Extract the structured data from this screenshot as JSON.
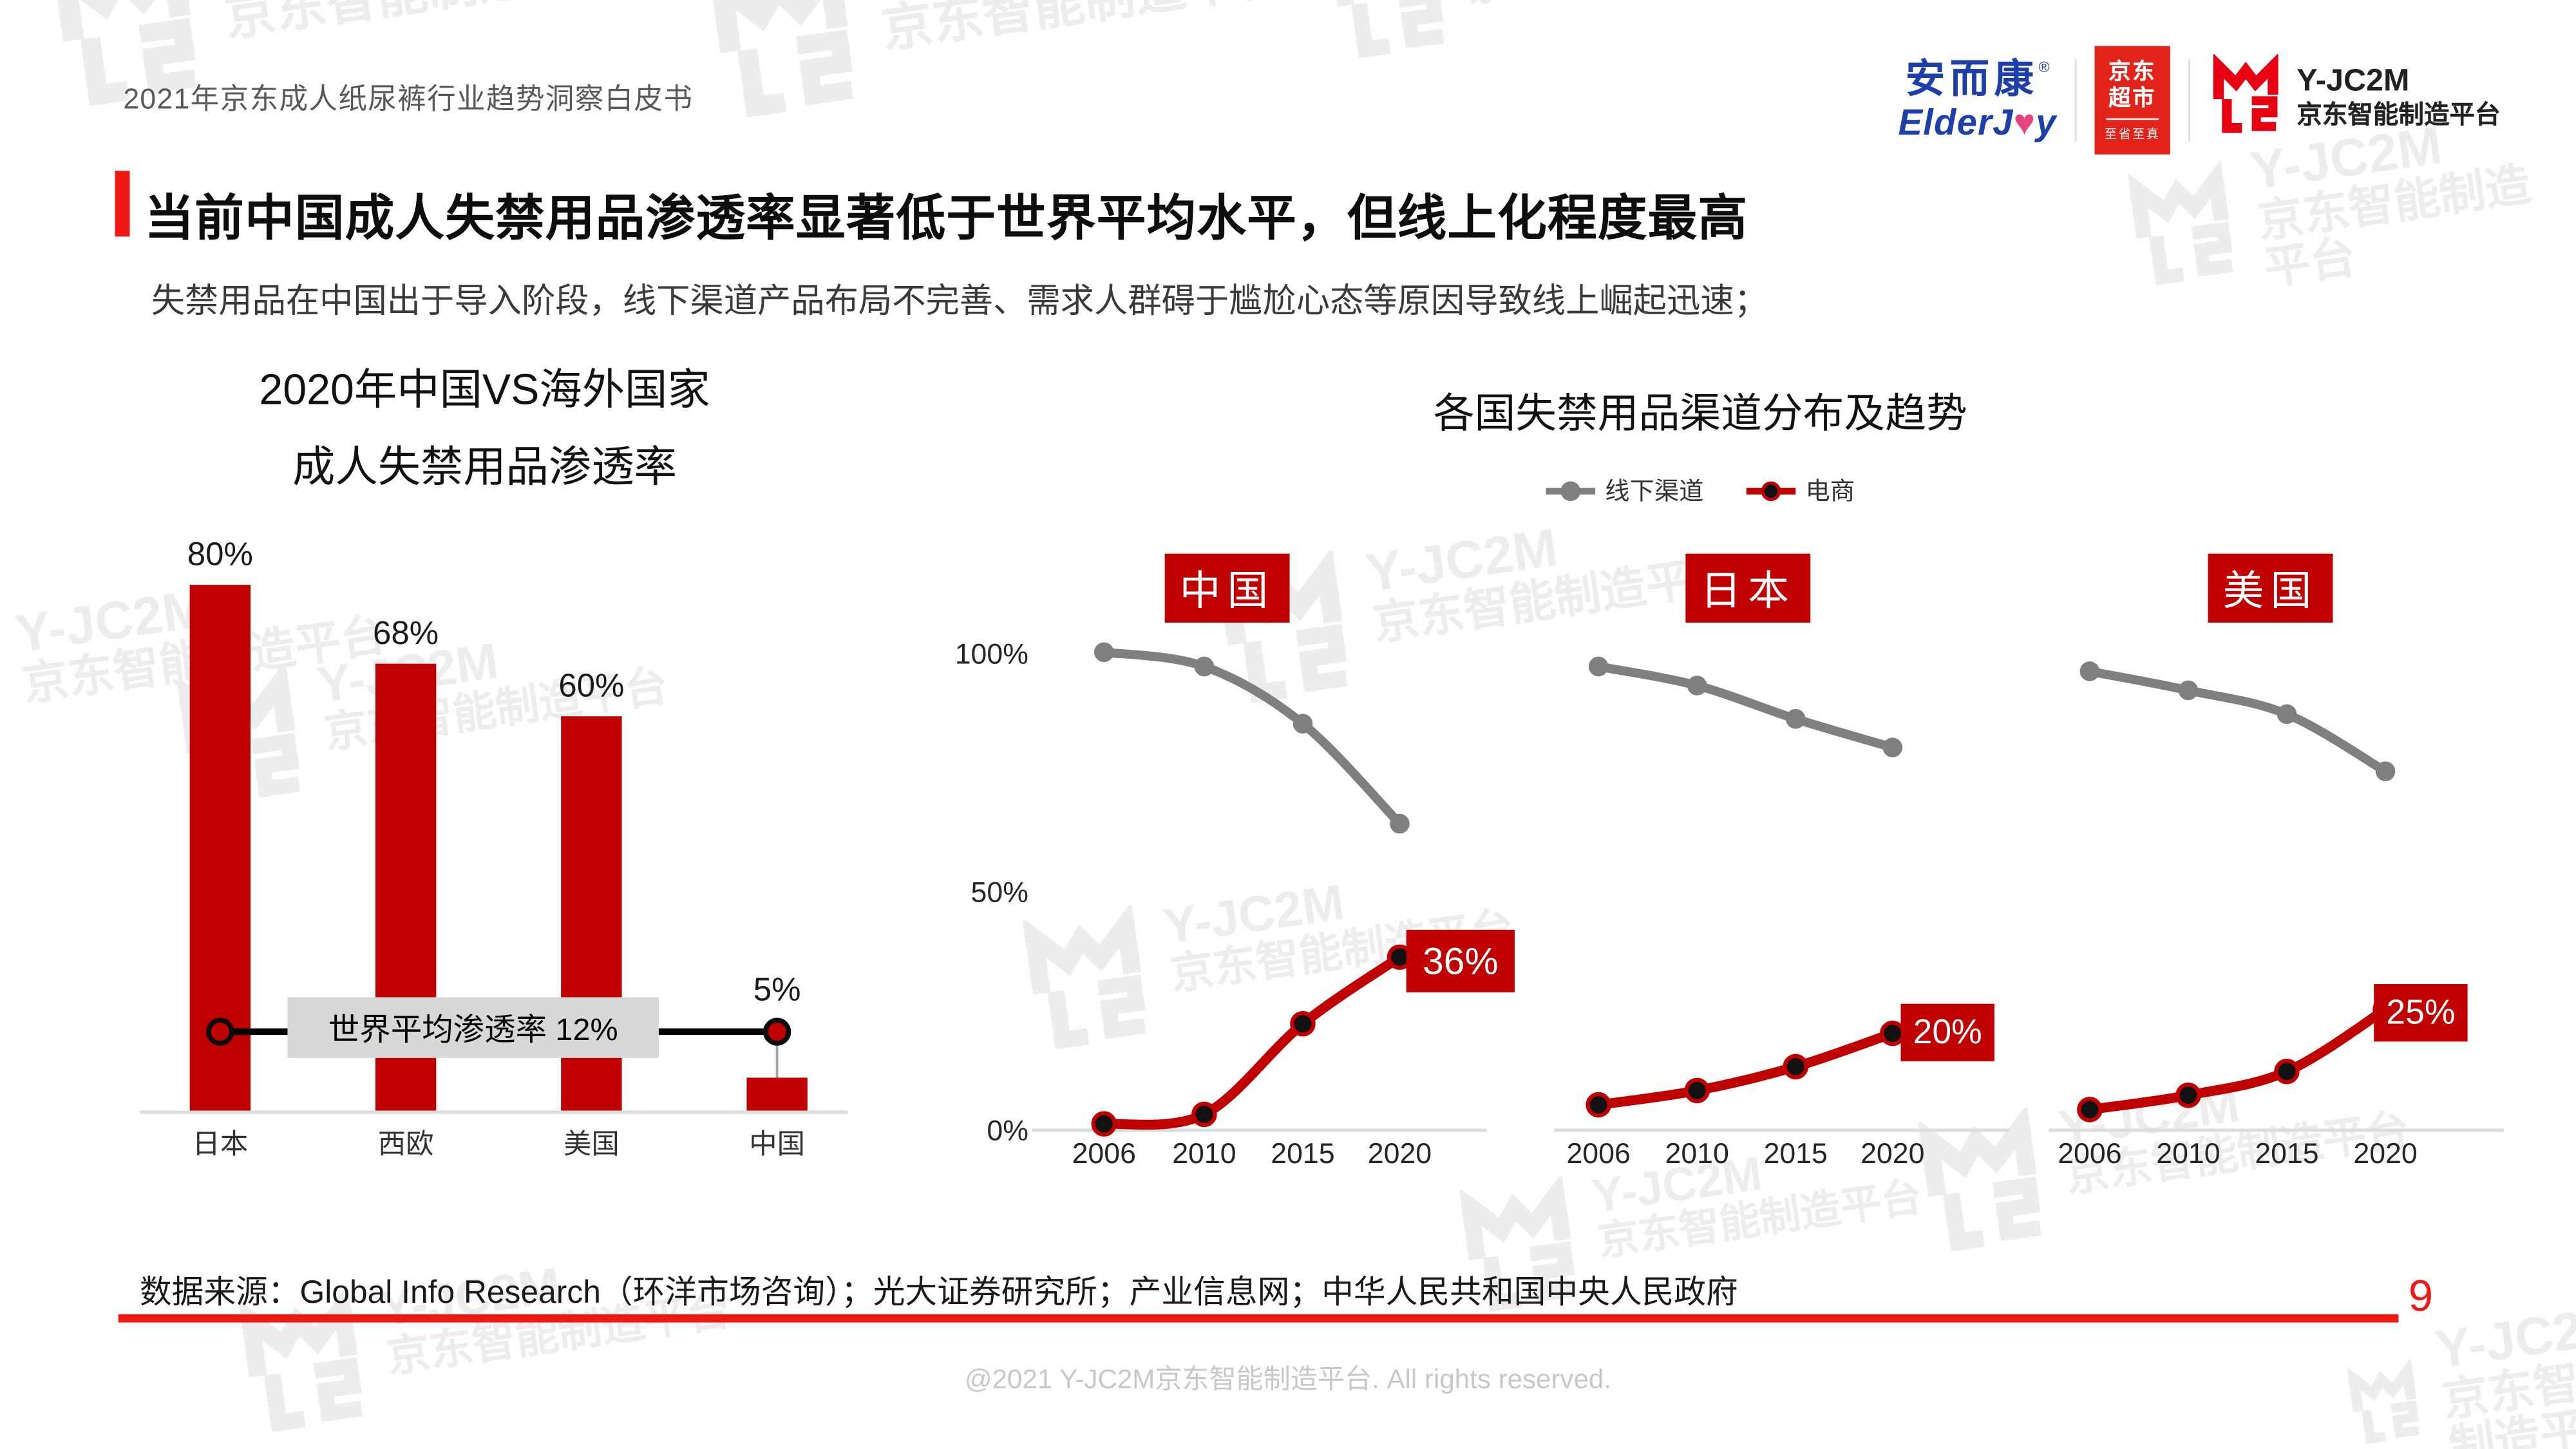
{
  "header": {
    "title": "2021年京东成人纸尿裤行业趋势洞察白皮书"
  },
  "logos": {
    "elderjoy": {
      "cn": "安而康",
      "reg": "®",
      "en_left": "ElderJ",
      "heart": "♥",
      "en_right": "y"
    },
    "jd_supermarket": {
      "line1": "京东",
      "line2": "超市",
      "slogan": "至省至真"
    },
    "yjc2m": {
      "name": "Y-JC2M",
      "cn": "京东智能制造平台"
    }
  },
  "headline": {
    "title": "当前中国成人失禁用品渗透率显著低于世界平均水平，但线上化程度最高",
    "subtitle": "失禁用品在中国出于导入阶段，线下渠道产品布局不完善、需求人群碍于尴尬心态等原因导致线上崛起迅速；"
  },
  "watermark": {
    "line1": "Y-JC2M",
    "line2": "京东智能制造平台"
  },
  "chart_data": [
    {
      "type": "bar",
      "title_lines": [
        "2020年中国VS海外国家",
        "成人失禁用品渗透率"
      ],
      "categories": [
        "日本",
        "西欧",
        "美国",
        "中国"
      ],
      "values": [
        80,
        68,
        60,
        5
      ],
      "value_labels": [
        "80%",
        "68%",
        "60%",
        "5%"
      ],
      "annotation": {
        "label": "世界平均渗透率 12%",
        "value": 12
      },
      "ylim": [
        0,
        100
      ],
      "grid": false
    },
    {
      "type": "line",
      "title": "各国失禁用品渠道分布及趋势",
      "legend": [
        {
          "name": "线下渠道",
          "color": "#7F7F7F"
        },
        {
          "name": "电商",
          "color": "#C00000"
        }
      ],
      "x": [
        2006,
        2010,
        2015,
        2020
      ],
      "y_ticks": [
        "100%",
        "50%",
        "0%"
      ],
      "ylim": [
        0,
        100
      ],
      "panels": [
        {
          "country": "中国",
          "series": [
            {
              "name": "线下渠道",
              "values": [
                100,
                97,
                85,
                64
              ]
            },
            {
              "name": "电商",
              "values": [
                1,
                3,
                22,
                36
              ]
            }
          ],
          "ecommerce_2020_label": "36%"
        },
        {
          "country": "日本",
          "series": [
            {
              "name": "线下渠道",
              "values": [
                97,
                93,
                86,
                80
              ]
            },
            {
              "name": "电商",
              "values": [
                5,
                8,
                13,
                20
              ]
            }
          ],
          "ecommerce_2020_label": "20%"
        },
        {
          "country": "美国",
          "series": [
            {
              "name": "线下渠道",
              "values": [
                96,
                92,
                87,
                75
              ]
            },
            {
              "name": "电商",
              "values": [
                4,
                7,
                12,
                25
              ]
            }
          ],
          "ecommerce_2020_label": "25%"
        }
      ]
    }
  ],
  "footer": {
    "source": "数据来源：Global Info Research（环洋市场咨询）；光大证券研究所；产业信息网；中华人民共和国中央人民政府",
    "page_number": "9",
    "copyright": "@2021 Y-JC2M京东智能制造平台. All rights reserved."
  },
  "colors": {
    "accent_red": "#EE1814",
    "chart_red": "#C00000",
    "offline_gray": "#7F7F7F",
    "axis_gray": "#DCDCDC",
    "jd_red": "#E2231A",
    "elderjoy_blue": "#1C3FAA",
    "marker_black": "#111111"
  }
}
